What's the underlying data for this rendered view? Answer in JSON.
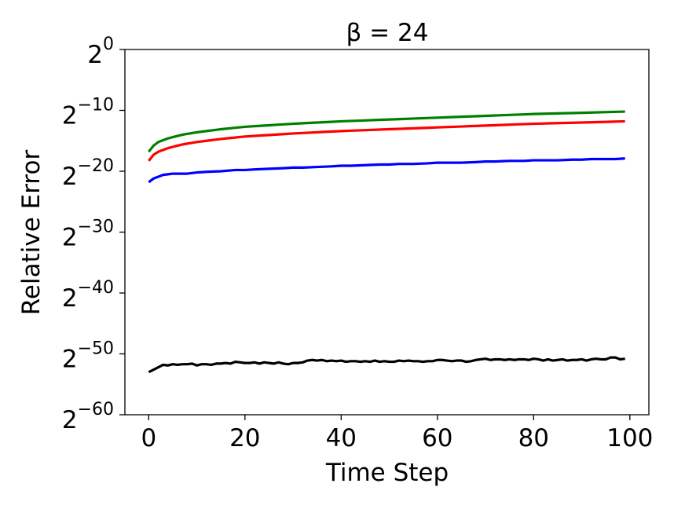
{
  "chart_data": {
    "type": "line",
    "title": "β = 24",
    "xlabel": "Time Step",
    "ylabel": "Relative Error",
    "xlim": [
      -4.95,
      103.95
    ],
    "ylim": [
      -60,
      0
    ],
    "yscale": "log2",
    "xticks": [
      {
        "value": 0,
        "label": "0"
      },
      {
        "value": 20,
        "label": "20"
      },
      {
        "value": 40,
        "label": "40"
      },
      {
        "value": 60,
        "label": "60"
      },
      {
        "value": 80,
        "label": "80"
      },
      {
        "value": 100,
        "label": "100"
      }
    ],
    "yticks": [
      {
        "exponent": 0,
        "base": "2",
        "label": "0"
      },
      {
        "exponent": -10,
        "base": "2",
        "label": "−10"
      },
      {
        "exponent": -20,
        "base": "2",
        "label": "−20"
      },
      {
        "exponent": -30,
        "base": "2",
        "label": "−30"
      },
      {
        "exponent": -40,
        "base": "2",
        "label": "−40"
      },
      {
        "exponent": -50,
        "base": "2",
        "label": "−50"
      },
      {
        "exponent": -60,
        "base": "2",
        "label": "−60"
      }
    ],
    "grid": false,
    "legend": null,
    "series": [
      {
        "color": "#008000",
        "smooth": true,
        "points": [
          [
            0,
            -16.8
          ],
          [
            1,
            -15.8
          ],
          [
            2,
            -15.2
          ],
          [
            4,
            -14.6
          ],
          [
            7,
            -14.0
          ],
          [
            10,
            -13.6
          ],
          [
            15,
            -13.1
          ],
          [
            20,
            -12.7
          ],
          [
            30,
            -12.2
          ],
          [
            40,
            -11.8
          ],
          [
            50,
            -11.5
          ],
          [
            60,
            -11.2
          ],
          [
            70,
            -10.9
          ],
          [
            80,
            -10.6
          ],
          [
            90,
            -10.4
          ],
          [
            99,
            -10.2
          ]
        ]
      },
      {
        "color": "#ff0000",
        "smooth": true,
        "points": [
          [
            0,
            -18.3
          ],
          [
            1,
            -17.3
          ],
          [
            2,
            -16.8
          ],
          [
            4,
            -16.2
          ],
          [
            7,
            -15.6
          ],
          [
            10,
            -15.2
          ],
          [
            15,
            -14.7
          ],
          [
            20,
            -14.3
          ],
          [
            30,
            -13.8
          ],
          [
            40,
            -13.4
          ],
          [
            50,
            -13.1
          ],
          [
            60,
            -12.8
          ],
          [
            70,
            -12.5
          ],
          [
            80,
            -12.2
          ],
          [
            90,
            -12.0
          ],
          [
            99,
            -11.8
          ]
        ]
      },
      {
        "color": "#0000ff",
        "smooth": false,
        "points": [
          [
            0,
            -21.8
          ],
          [
            1,
            -21.2
          ],
          [
            2,
            -20.9
          ],
          [
            3,
            -20.6
          ],
          [
            4,
            -20.5
          ],
          [
            5,
            -20.4
          ],
          [
            6,
            -20.4
          ],
          [
            8,
            -20.4
          ],
          [
            10,
            -20.2
          ],
          [
            12,
            -20.1
          ],
          [
            15,
            -20.0
          ],
          [
            18,
            -19.8
          ],
          [
            20,
            -19.8
          ],
          [
            22,
            -19.7
          ],
          [
            25,
            -19.6
          ],
          [
            28,
            -19.5
          ],
          [
            30,
            -19.4
          ],
          [
            32,
            -19.4
          ],
          [
            35,
            -19.3
          ],
          [
            38,
            -19.2
          ],
          [
            40,
            -19.1
          ],
          [
            42,
            -19.1
          ],
          [
            45,
            -19.0
          ],
          [
            48,
            -18.9
          ],
          [
            50,
            -18.9
          ],
          [
            52,
            -18.8
          ],
          [
            55,
            -18.8
          ],
          [
            58,
            -18.7
          ],
          [
            60,
            -18.6
          ],
          [
            62,
            -18.6
          ],
          [
            65,
            -18.6
          ],
          [
            68,
            -18.5
          ],
          [
            70,
            -18.4
          ],
          [
            72,
            -18.4
          ],
          [
            75,
            -18.3
          ],
          [
            78,
            -18.3
          ],
          [
            80,
            -18.2
          ],
          [
            82,
            -18.2
          ],
          [
            85,
            -18.2
          ],
          [
            88,
            -18.1
          ],
          [
            90,
            -18.1
          ],
          [
            92,
            -18.0
          ],
          [
            95,
            -18.0
          ],
          [
            97,
            -18.0
          ],
          [
            99,
            -17.9
          ]
        ]
      },
      {
        "color": "#000000",
        "smooth": false,
        "points": [
          [
            0,
            -53.0
          ],
          [
            1,
            -52.6
          ],
          [
            2,
            -52.2
          ],
          [
            3,
            -51.8
          ],
          [
            4,
            -51.9
          ],
          [
            5,
            -51.7
          ],
          [
            6,
            -51.8
          ],
          [
            7,
            -51.7
          ],
          [
            8,
            -51.7
          ],
          [
            9,
            -51.6
          ],
          [
            10,
            -51.9
          ],
          [
            11,
            -51.7
          ],
          [
            12,
            -51.7
          ],
          [
            13,
            -51.8
          ],
          [
            14,
            -51.6
          ],
          [
            15,
            -51.6
          ],
          [
            16,
            -51.5
          ],
          [
            17,
            -51.6
          ],
          [
            18,
            -51.3
          ],
          [
            19,
            -51.4
          ],
          [
            20,
            -51.5
          ],
          [
            21,
            -51.5
          ],
          [
            22,
            -51.4
          ],
          [
            23,
            -51.6
          ],
          [
            24,
            -51.4
          ],
          [
            25,
            -51.5
          ],
          [
            26,
            -51.6
          ],
          [
            27,
            -51.4
          ],
          [
            28,
            -51.6
          ],
          [
            29,
            -51.7
          ],
          [
            30,
            -51.5
          ],
          [
            31,
            -51.5
          ],
          [
            32,
            -51.4
          ],
          [
            33,
            -51.1
          ],
          [
            34,
            -51.0
          ],
          [
            35,
            -51.1
          ],
          [
            36,
            -51.0
          ],
          [
            37,
            -51.2
          ],
          [
            38,
            -51.1
          ],
          [
            39,
            -51.2
          ],
          [
            40,
            -51.1
          ],
          [
            41,
            -51.3
          ],
          [
            42,
            -51.2
          ],
          [
            43,
            -51.2
          ],
          [
            44,
            -51.3
          ],
          [
            45,
            -51.2
          ],
          [
            46,
            -51.3
          ],
          [
            47,
            -51.1
          ],
          [
            48,
            -51.3
          ],
          [
            49,
            -51.2
          ],
          [
            50,
            -51.3
          ],
          [
            51,
            -51.3
          ],
          [
            52,
            -51.1
          ],
          [
            53,
            -51.2
          ],
          [
            54,
            -51.1
          ],
          [
            55,
            -51.2
          ],
          [
            56,
            -51.2
          ],
          [
            57,
            -51.3
          ],
          [
            58,
            -51.2
          ],
          [
            59,
            -51.2
          ],
          [
            60,
            -51.0
          ],
          [
            61,
            -51.0
          ],
          [
            62,
            -51.1
          ],
          [
            63,
            -51.2
          ],
          [
            64,
            -51.1
          ],
          [
            65,
            -51.1
          ],
          [
            66,
            -51.3
          ],
          [
            67,
            -51.2
          ],
          [
            68,
            -51.0
          ],
          [
            69,
            -50.9
          ],
          [
            70,
            -50.8
          ],
          [
            71,
            -51.0
          ],
          [
            72,
            -50.9
          ],
          [
            73,
            -50.9
          ],
          [
            74,
            -51.0
          ],
          [
            75,
            -50.9
          ],
          [
            76,
            -51.0
          ],
          [
            77,
            -50.9
          ],
          [
            78,
            -50.9
          ],
          [
            79,
            -51.0
          ],
          [
            80,
            -50.8
          ],
          [
            81,
            -50.9
          ],
          [
            82,
            -51.1
          ],
          [
            83,
            -50.9
          ],
          [
            84,
            -51.1
          ],
          [
            85,
            -51.0
          ],
          [
            86,
            -50.9
          ],
          [
            87,
            -51.1
          ],
          [
            88,
            -51.0
          ],
          [
            89,
            -51.0
          ],
          [
            90,
            -50.9
          ],
          [
            91,
            -51.1
          ],
          [
            92,
            -50.9
          ],
          [
            93,
            -50.8
          ],
          [
            94,
            -50.9
          ],
          [
            95,
            -50.9
          ],
          [
            96,
            -50.6
          ],
          [
            97,
            -50.6
          ],
          [
            98,
            -50.9
          ],
          [
            99,
            -50.8
          ]
        ]
      }
    ]
  }
}
